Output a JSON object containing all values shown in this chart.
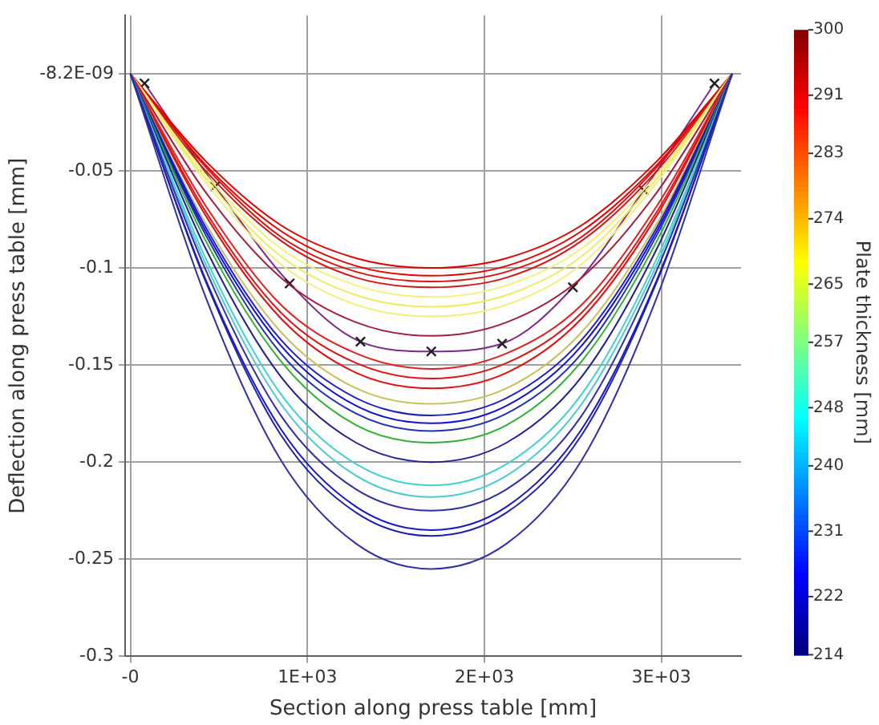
{
  "chart_data": {
    "type": "line",
    "xlabel": "Section along press table [mm]",
    "ylabel": "Deflection along press table [mm]",
    "clabel": "Plate thickness [mm]",
    "clim": [
      214,
      300
    ],
    "cticks": [
      214,
      222,
      231,
      240,
      248,
      257,
      265,
      274,
      283,
      291,
      300
    ],
    "x": [
      0,
      425,
      850,
      1275,
      1700,
      2125,
      2550,
      2975,
      3400
    ],
    "xlim": [
      -30,
      3450
    ],
    "xticks": [
      {
        "value": 0,
        "label": "-0"
      },
      {
        "value": 1000,
        "label": "1E+03"
      },
      {
        "value": 2000,
        "label": "2E+03"
      },
      {
        "value": 3000,
        "label": "3E+03"
      }
    ],
    "ylim": [
      -0.3,
      0.03
    ],
    "yticks": [
      {
        "value": -8.2e-09,
        "label": "-8.2E-09"
      },
      -0.05,
      -0.1,
      -0.15,
      -0.2,
      -0.25,
      -0.3
    ],
    "grid": true,
    "legend": false,
    "marker": "none",
    "line_style": "solid",
    "series": [
      {
        "color": "#3030a0",
        "values": [
          0,
          -0.115,
          -0.199,
          -0.242,
          -0.255,
          -0.242,
          -0.199,
          -0.115,
          0
        ]
      },
      {
        "color": "#2020b0",
        "values": [
          0,
          -0.107,
          -0.186,
          -0.226,
          -0.238,
          -0.226,
          -0.186,
          -0.107,
          0
        ]
      },
      {
        "color": "#1818c0",
        "values": [
          0,
          -0.106,
          -0.183,
          -0.223,
          -0.235,
          -0.223,
          -0.183,
          -0.106,
          0
        ]
      },
      {
        "color": "#3030a0",
        "values": [
          0,
          -0.101,
          -0.176,
          -0.214,
          -0.225,
          -0.214,
          -0.176,
          -0.101,
          0
        ]
      },
      {
        "color": "#50c8d0",
        "values": [
          0,
          -0.098,
          -0.17,
          -0.207,
          -0.218,
          -0.207,
          -0.17,
          -0.098,
          0
        ]
      },
      {
        "color": "#40d0d0",
        "values": [
          0,
          -0.095,
          -0.165,
          -0.201,
          -0.212,
          -0.201,
          -0.165,
          -0.095,
          0
        ]
      },
      {
        "color": "#202090",
        "values": [
          0,
          -0.09,
          -0.156,
          -0.19,
          -0.2,
          -0.19,
          -0.156,
          -0.09,
          0
        ]
      },
      {
        "color": "#30b030",
        "values": [
          0,
          -0.086,
          -0.148,
          -0.181,
          -0.19,
          -0.181,
          -0.148,
          -0.086,
          0
        ]
      },
      {
        "color": "#2030b0",
        "values": [
          0,
          -0.083,
          -0.144,
          -0.175,
          -0.184,
          -0.175,
          -0.144,
          -0.083,
          0
        ]
      },
      {
        "color": "#1010d0",
        "values": [
          0,
          -0.081,
          -0.14,
          -0.171,
          -0.18,
          -0.171,
          -0.14,
          -0.081,
          0
        ]
      },
      {
        "color": "#2020c0",
        "values": [
          0,
          -0.079,
          -0.137,
          -0.167,
          -0.176,
          -0.167,
          -0.137,
          -0.079,
          0
        ]
      },
      {
        "color": "#c8c060",
        "values": [
          0,
          -0.077,
          -0.133,
          -0.162,
          -0.17,
          -0.162,
          -0.133,
          -0.077,
          0
        ]
      },
      {
        "color": "#e01010",
        "values": [
          0,
          -0.073,
          -0.126,
          -0.154,
          -0.162,
          -0.154,
          -0.126,
          -0.073,
          0
        ]
      },
      {
        "color": "#d81818",
        "values": [
          0,
          -0.071,
          -0.123,
          -0.149,
          -0.157,
          -0.149,
          -0.123,
          -0.071,
          0
        ]
      },
      {
        "color": "#e02020",
        "values": [
          0,
          -0.068,
          -0.119,
          -0.144,
          -0.152,
          -0.144,
          -0.119,
          -0.068,
          0
        ]
      },
      {
        "color": "#a02040",
        "values": [
          0,
          -0.061,
          -0.105,
          -0.128,
          -0.135,
          -0.128,
          -0.105,
          -0.061,
          0
        ]
      },
      {
        "color": "#f2ee80",
        "values": [
          0,
          -0.056,
          -0.098,
          -0.119,
          -0.125,
          -0.119,
          -0.098,
          -0.056,
          0
        ]
      },
      {
        "color": "#f0ea60",
        "values": [
          0,
          -0.054,
          -0.094,
          -0.114,
          -0.12,
          -0.114,
          -0.094,
          -0.054,
          0
        ]
      },
      {
        "color": "#f5f07a",
        "values": [
          0,
          -0.052,
          -0.09,
          -0.109,
          -0.115,
          -0.109,
          -0.09,
          -0.052,
          0
        ]
      },
      {
        "color": "#d01818",
        "values": [
          0,
          -0.05,
          -0.086,
          -0.105,
          -0.11,
          -0.105,
          -0.086,
          -0.05,
          0
        ]
      },
      {
        "color": "#dd1010",
        "values": [
          0,
          -0.048,
          -0.084,
          -0.102,
          -0.107,
          -0.102,
          -0.084,
          -0.048,
          0
        ]
      },
      {
        "color": "#e80000",
        "values": [
          0,
          -0.047,
          -0.081,
          -0.099,
          -0.104,
          -0.099,
          -0.081,
          -0.047,
          0
        ]
      },
      {
        "color": "#e00000",
        "values": [
          0,
          -0.045,
          -0.078,
          -0.095,
          -0.1,
          -0.095,
          -0.078,
          -0.045,
          0
        ]
      },
      {
        "color": "#7a2a8a",
        "marker": "cross",
        "x": [
          80,
          480,
          900,
          1300,
          1700,
          2100,
          2500,
          2900,
          3300
        ],
        "values": [
          -0.005,
          -0.058,
          -0.108,
          -0.138,
          -0.143,
          -0.139,
          -0.11,
          -0.06,
          -0.005
        ]
      }
    ]
  }
}
